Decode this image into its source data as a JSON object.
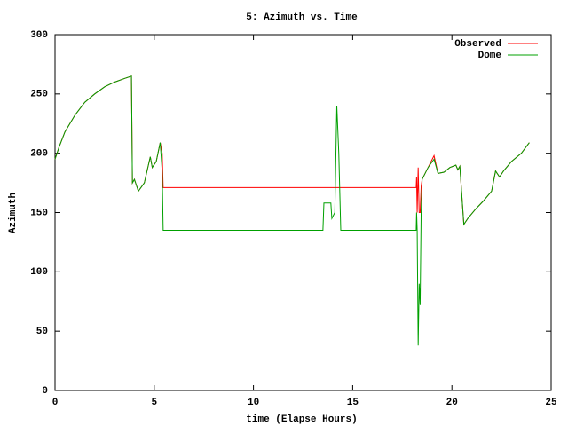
{
  "chart_data": {
    "type": "line",
    "title": "5: Azimuth vs. Time",
    "x_label": "time (Elapse Hours)",
    "y_label": "Azimuth",
    "x": [
      0,
      0.2,
      0.5,
      1,
      1.5,
      2,
      2.5,
      3,
      3.5,
      3.85,
      3.9,
      4.0,
      4.2,
      4.5,
      4.8,
      4.9,
      5.1,
      5.3,
      5.4,
      5.45,
      13.5,
      13.55,
      13.9,
      13.95,
      14.1,
      14.2,
      14.3,
      14.4,
      18.2,
      18.22,
      18.25,
      18.3,
      18.35,
      18.4,
      18.45,
      18.5,
      18.8,
      19.1,
      19.3,
      19.6,
      19.9,
      20.2,
      20.3,
      20.4,
      20.6,
      20.8,
      21.2,
      21.6,
      22.0,
      22.2,
      22.4,
      22.6,
      23,
      23.5,
      23.9
    ],
    "series": [
      {
        "name": "Observed",
        "color": "#ff0000",
        "values": [
          195,
          205,
          218,
          232,
          243,
          250,
          256,
          260,
          263,
          265,
          175,
          178,
          168,
          175,
          197,
          188,
          193,
          209,
          200,
          171,
          171,
          171,
          171,
          171,
          171,
          171,
          171,
          171,
          171,
          180,
          150,
          188,
          150,
          150,
          172,
          178,
          188,
          198,
          183,
          184,
          188,
          190,
          186,
          189,
          140,
          145,
          153,
          160,
          168,
          185,
          180,
          185,
          193,
          200,
          209
        ]
      },
      {
        "name": "Dome",
        "color": "#00a000",
        "values": [
          195,
          205,
          218,
          232,
          243,
          250,
          256,
          260,
          263,
          265,
          175,
          178,
          168,
          175,
          197,
          188,
          193,
          209,
          185,
          135,
          135,
          158,
          158,
          145,
          150,
          240,
          200,
          135,
          135,
          150,
          135,
          38,
          90,
          72,
          150,
          178,
          188,
          195,
          183,
          184,
          188,
          190,
          186,
          189,
          140,
          145,
          153,
          160,
          168,
          185,
          180,
          185,
          193,
          200,
          209
        ]
      }
    ],
    "xlim": [
      0,
      25
    ],
    "xticks": [
      0,
      5,
      10,
      15,
      20,
      25
    ],
    "ylim": [
      0,
      300
    ],
    "yticks": [
      0,
      50,
      100,
      150,
      200,
      250,
      300
    ],
    "legend": "top-right"
  }
}
